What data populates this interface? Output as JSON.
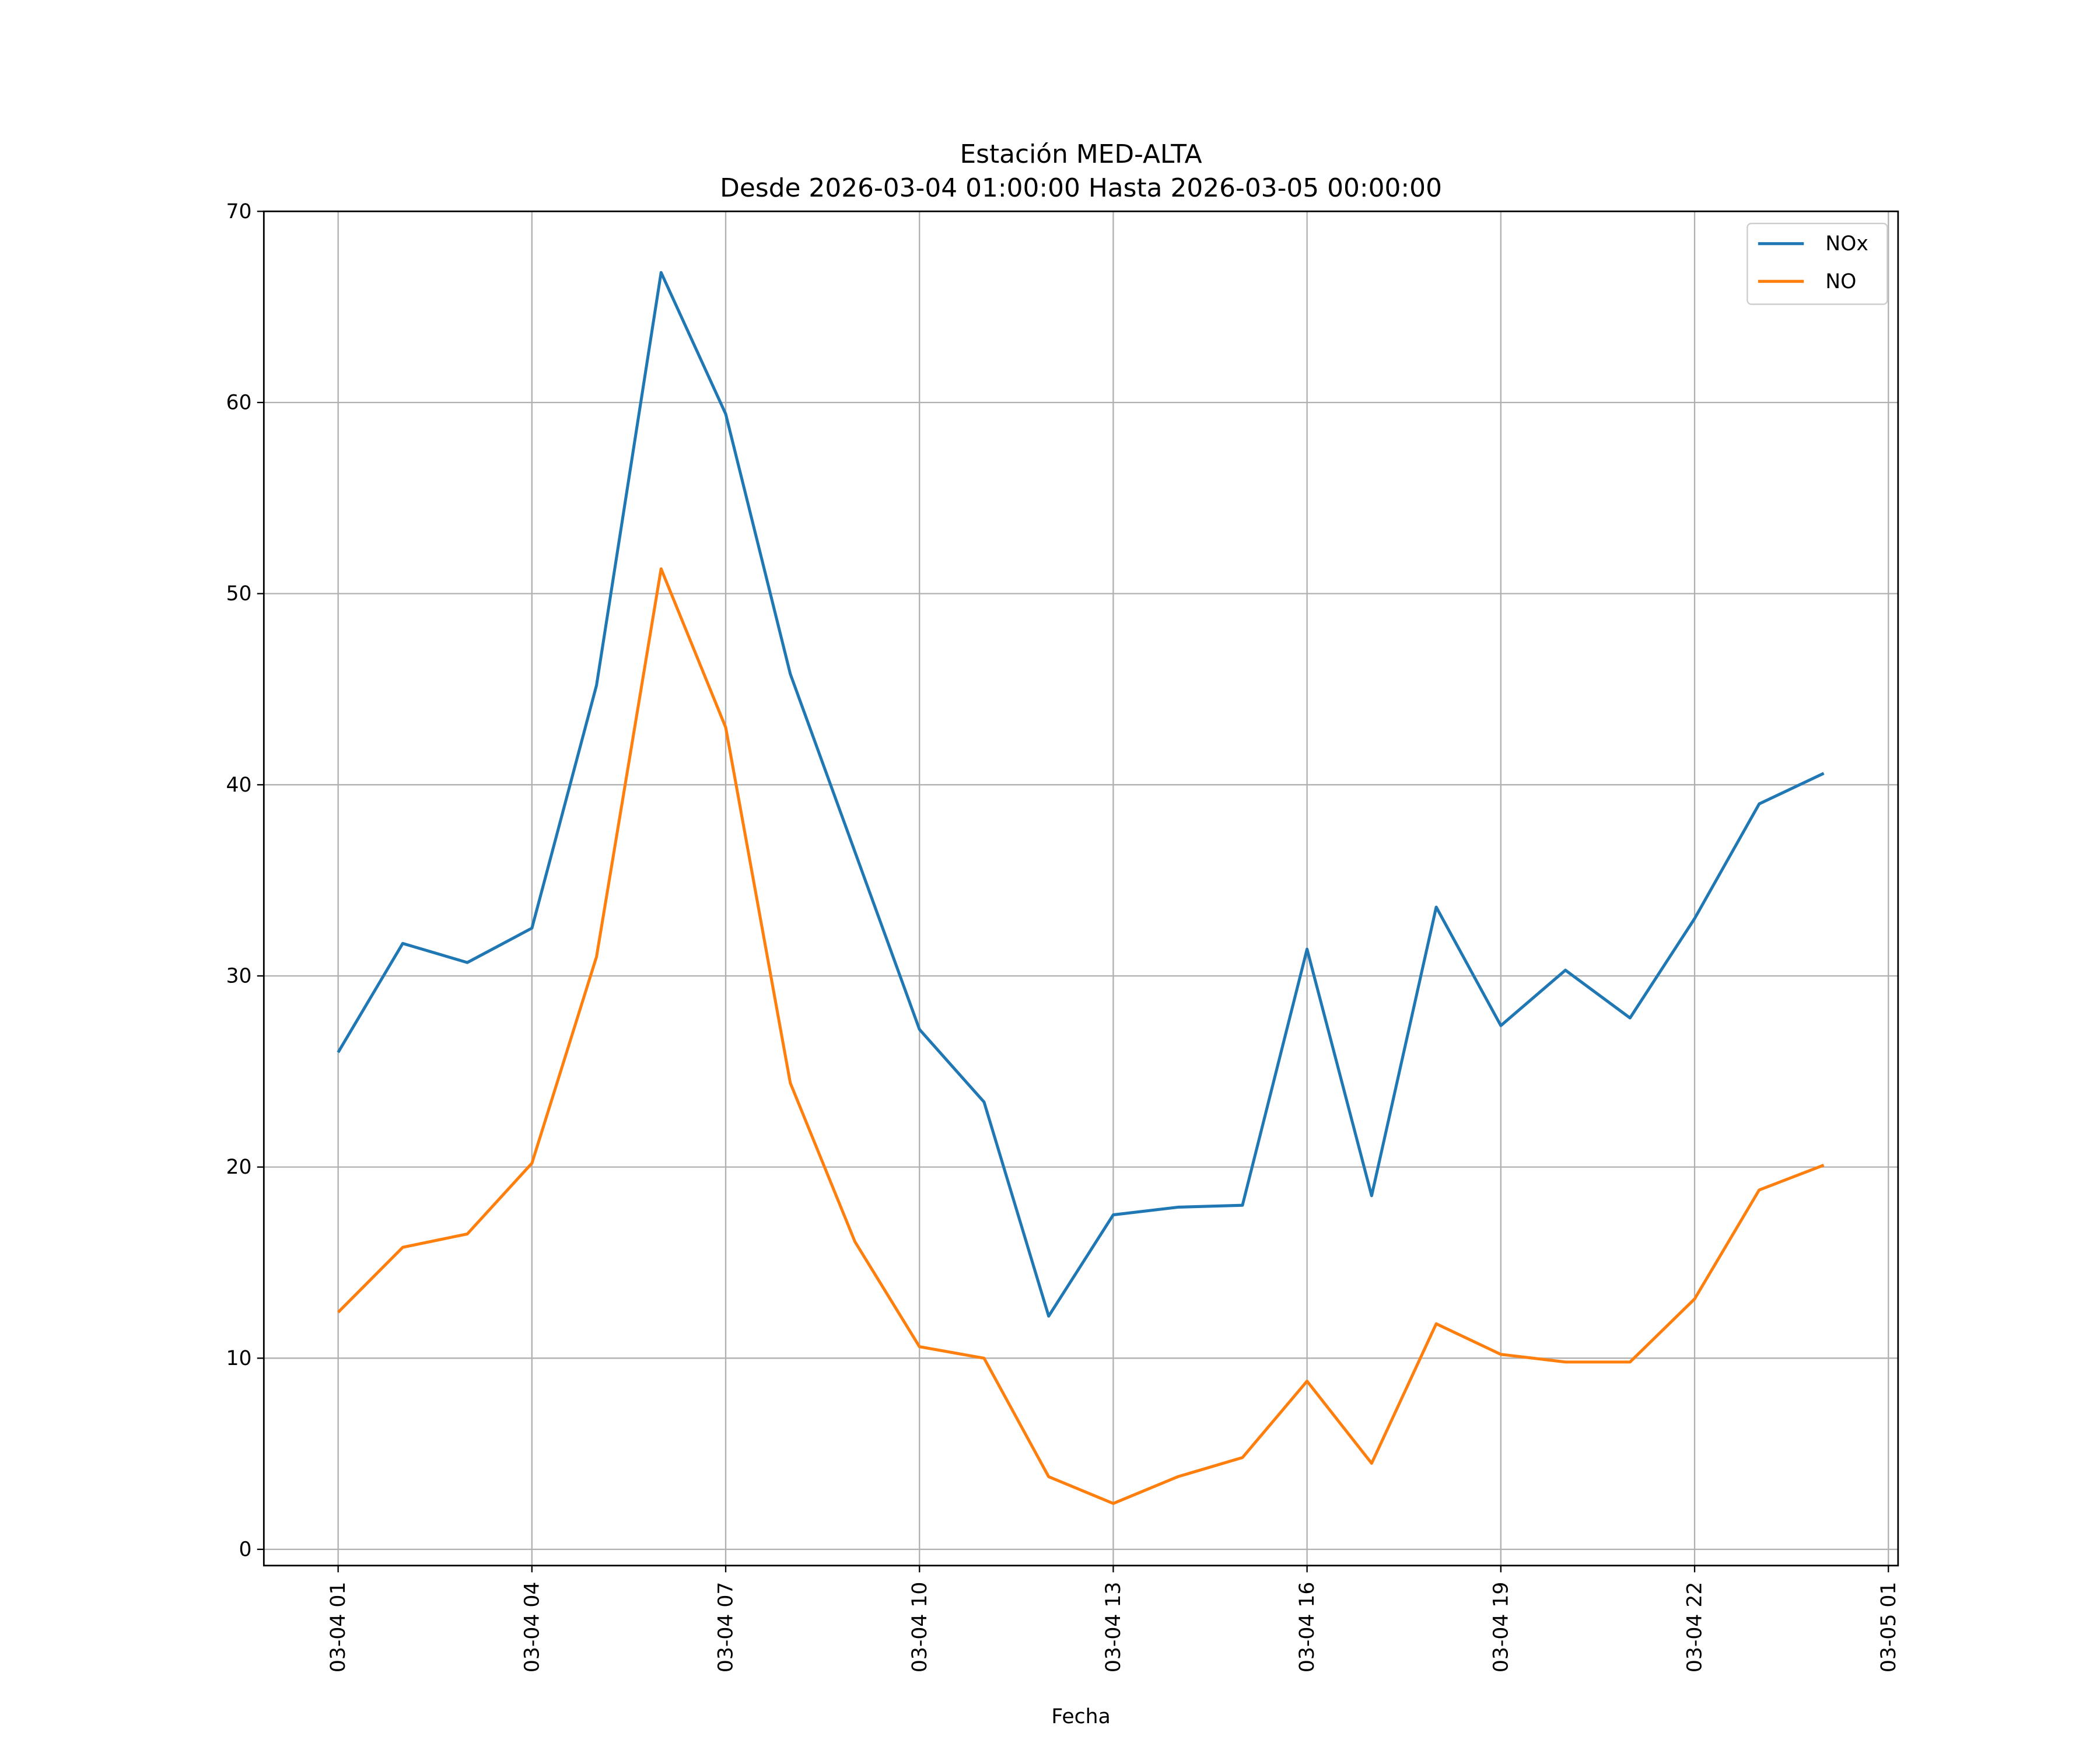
{
  "chart_data": {
    "type": "line",
    "title": "Estación MED-ALTA",
    "subtitle": "Desde 2026-03-04 01:00:00 Hasta 2026-03-05 00:00:00",
    "xlabel": "Fecha",
    "ylabel": "",
    "x_hours": [
      1,
      2,
      3,
      4,
      5,
      6,
      7,
      8,
      9,
      10,
      11,
      12,
      13,
      14,
      15,
      16,
      17,
      18,
      19,
      20,
      21,
      22,
      23,
      24
    ],
    "series": [
      {
        "name": "NOx",
        "color": "#1f77b4",
        "values": [
          26.0,
          31.7,
          30.7,
          32.5,
          45.2,
          66.8,
          59.4,
          45.8,
          36.5,
          27.2,
          23.4,
          12.2,
          17.5,
          17.9,
          18.0,
          31.4,
          18.5,
          33.6,
          27.4,
          30.3,
          27.8,
          33.0,
          39.0,
          40.6
        ]
      },
      {
        "name": "NO",
        "color": "#ff7f0e",
        "values": [
          12.4,
          15.8,
          16.5,
          20.2,
          31.0,
          51.3,
          43.0,
          24.4,
          16.1,
          10.6,
          10.0,
          3.8,
          2.4,
          3.8,
          4.8,
          8.8,
          4.5,
          11.8,
          10.2,
          9.8,
          9.8,
          13.1,
          18.8,
          20.1
        ]
      }
    ],
    "xticks": [
      {
        "hour": 1,
        "label": "03-04 01"
      },
      {
        "hour": 4,
        "label": "03-04 04"
      },
      {
        "hour": 7,
        "label": "03-04 07"
      },
      {
        "hour": 10,
        "label": "03-04 10"
      },
      {
        "hour": 13,
        "label": "03-04 13"
      },
      {
        "hour": 16,
        "label": "03-04 16"
      },
      {
        "hour": 19,
        "label": "03-04 19"
      },
      {
        "hour": 22,
        "label": "03-04 22"
      },
      {
        "hour": 25,
        "label": "03-05 01"
      }
    ],
    "yticks": [
      0,
      10,
      20,
      30,
      40,
      50,
      60,
      70
    ],
    "xlim": [
      -0.15,
      25.15
    ],
    "ylim": [
      -0.85,
      70
    ],
    "grid": true,
    "legend_position": "top-right"
  }
}
